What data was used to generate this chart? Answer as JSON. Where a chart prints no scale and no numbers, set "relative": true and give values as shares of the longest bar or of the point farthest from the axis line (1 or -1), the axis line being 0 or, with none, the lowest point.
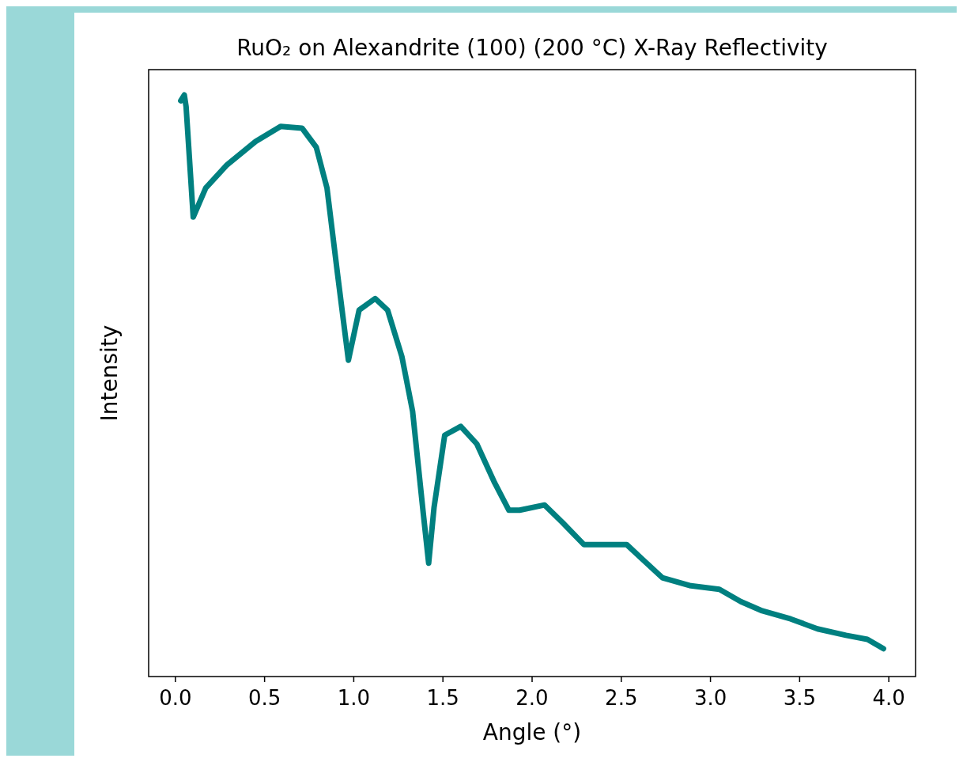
{
  "chart_data": {
    "type": "line",
    "title": "RuO₂ on Alexandrite (100) (200 °C) X-Ray Reflectivity",
    "xlabel": "Angle (°)",
    "ylabel": "Intensity",
    "relative": true,
    "xlim": [
      -0.15,
      4.15
    ],
    "xticks": [
      {
        "value": 0,
        "label": "0.0"
      },
      {
        "value": 0.5,
        "label": "0.5"
      },
      {
        "value": 1,
        "label": "1.0"
      },
      {
        "value": 1.5,
        "label": "1.5"
      },
      {
        "value": 2,
        "label": "2.0"
      },
      {
        "value": 2.5,
        "label": "2.5"
      },
      {
        "value": 3,
        "label": "3.0"
      },
      {
        "value": 3.5,
        "label": "3.5"
      },
      {
        "value": 4,
        "label": "4.0"
      }
    ],
    "x": [
      0.03,
      0.05,
      0.06,
      0.1,
      0.17,
      0.29,
      0.45,
      0.59,
      0.71,
      0.79,
      0.85,
      0.91,
      0.97,
      1.03,
      1.12,
      1.19,
      1.27,
      1.33,
      1.39,
      1.42,
      1.45,
      1.51,
      1.6,
      1.69,
      1.79,
      1.87,
      1.93,
      2.07,
      2.17,
      2.29,
      2.41,
      2.53,
      2.61,
      2.73,
      2.89,
      3.05,
      3.17,
      3.29,
      3.45,
      3.6,
      3.76,
      3.88,
      3.97
    ],
    "series": [
      {
        "color": "#008080",
        "values": [
          0.99,
          1.0,
          0.98,
          0.79,
          0.84,
          0.88,
          0.92,
          0.946,
          0.943,
          0.91,
          0.84,
          0.69,
          0.544,
          0.63,
          0.65,
          0.63,
          0.55,
          0.456,
          0.28,
          0.195,
          0.29,
          0.415,
          0.43,
          0.4,
          0.333,
          0.286,
          0.286,
          0.295,
          0.265,
          0.227,
          0.227,
          0.227,
          0.204,
          0.17,
          0.156,
          0.15,
          0.129,
          0.113,
          0.099,
          0.082,
          0.071,
          0.064,
          0.048
        ]
      }
    ]
  }
}
